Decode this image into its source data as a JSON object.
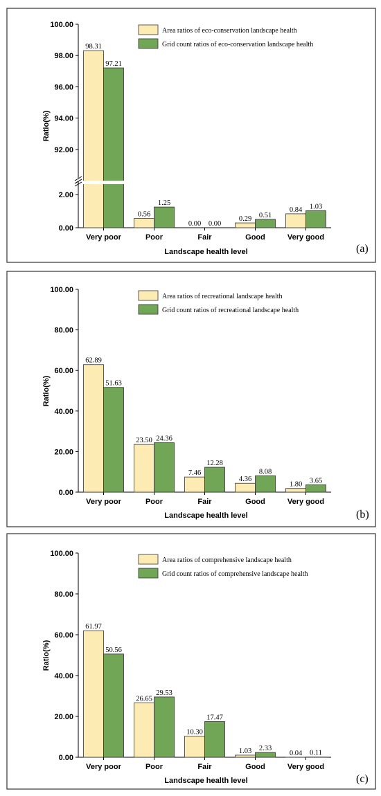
{
  "colors": {
    "area": "#FCEBB2",
    "grid": "#70A655",
    "axis": "#000000",
    "frame": "#333333"
  },
  "chart_data": [
    {
      "type": "bar",
      "panel_label": "(a)",
      "categories": [
        "Very poor",
        "Poor",
        "Fair",
        "Good",
        "Very good"
      ],
      "series": [
        {
          "name": "Area ratios of eco-conservation landscape health",
          "values": [
            98.31,
            0.56,
            0.0,
            0.29,
            0.84
          ],
          "labels": [
            "98.31",
            "0.56",
            "0.00",
            "0.29",
            "0.84"
          ]
        },
        {
          "name": "Grid count ratios of eco-conservation landscape health",
          "values": [
            97.21,
            1.25,
            0.0,
            0.51,
            1.03
          ],
          "labels": [
            "97.21",
            "1.25",
            "0.00",
            "0.51",
            "1.03"
          ]
        }
      ],
      "xlabel": "Landscape health level",
      "ylabel": "Ratio(%)",
      "axis_break": true,
      "lower_ylim": [
        0,
        2.8
      ],
      "upper_ylim": [
        90.0,
        100.0
      ],
      "yticks_lower": [
        "0.00",
        "2.00"
      ],
      "yticks_upper": [
        "92.00",
        "94.00",
        "96.00",
        "98.00",
        "100.00"
      ],
      "legend_position": "top-right",
      "grid": false
    },
    {
      "type": "bar",
      "panel_label": "(b)",
      "categories": [
        "Very poor",
        "Poor",
        "Fair",
        "Good",
        "Very good"
      ],
      "series": [
        {
          "name": "Area ratios of recreational landscape health",
          "values": [
            62.89,
            23.5,
            7.46,
            4.36,
            1.8
          ],
          "labels": [
            "62.89",
            "23.50",
            "7.46",
            "4.36",
            "1.80"
          ]
        },
        {
          "name": "Grid count ratios of recreational landscape health",
          "values": [
            51.63,
            24.36,
            12.28,
            8.08,
            3.65
          ],
          "labels": [
            "51.63",
            "24.36",
            "12.28",
            "8.08",
            "3.65"
          ]
        }
      ],
      "xlabel": "Landscape health level",
      "ylabel": "Ratio(%)",
      "ylim": [
        0,
        100
      ],
      "yticks": [
        "0.00",
        "20.00",
        "40.00",
        "60.00",
        "80.00",
        "100.00"
      ],
      "legend_position": "top-right",
      "grid": false
    },
    {
      "type": "bar",
      "panel_label": "(c)",
      "categories": [
        "Very poor",
        "Poor",
        "Fair",
        "Good",
        "Very good"
      ],
      "series": [
        {
          "name": "Area ratios of comprehensive landscape health",
          "values": [
            61.97,
            26.65,
            10.3,
            1.03,
            0.04
          ],
          "labels": [
            "61.97",
            "26.65",
            "10.30",
            "1.03",
            "0.04"
          ]
        },
        {
          "name": "Grid count ratios of comprehensive landscape health",
          "values": [
            50.56,
            29.53,
            17.47,
            2.33,
            0.11
          ],
          "labels": [
            "50.56",
            "29.53",
            "17.47",
            "2.33",
            "0.11"
          ]
        }
      ],
      "xlabel": "Landscape health level",
      "ylabel": "Ratio(%)",
      "ylim": [
        0,
        100
      ],
      "yticks": [
        "0.00",
        "20.00",
        "40.00",
        "60.00",
        "80.00",
        "100.00"
      ],
      "legend_position": "top-right",
      "grid": false
    }
  ]
}
